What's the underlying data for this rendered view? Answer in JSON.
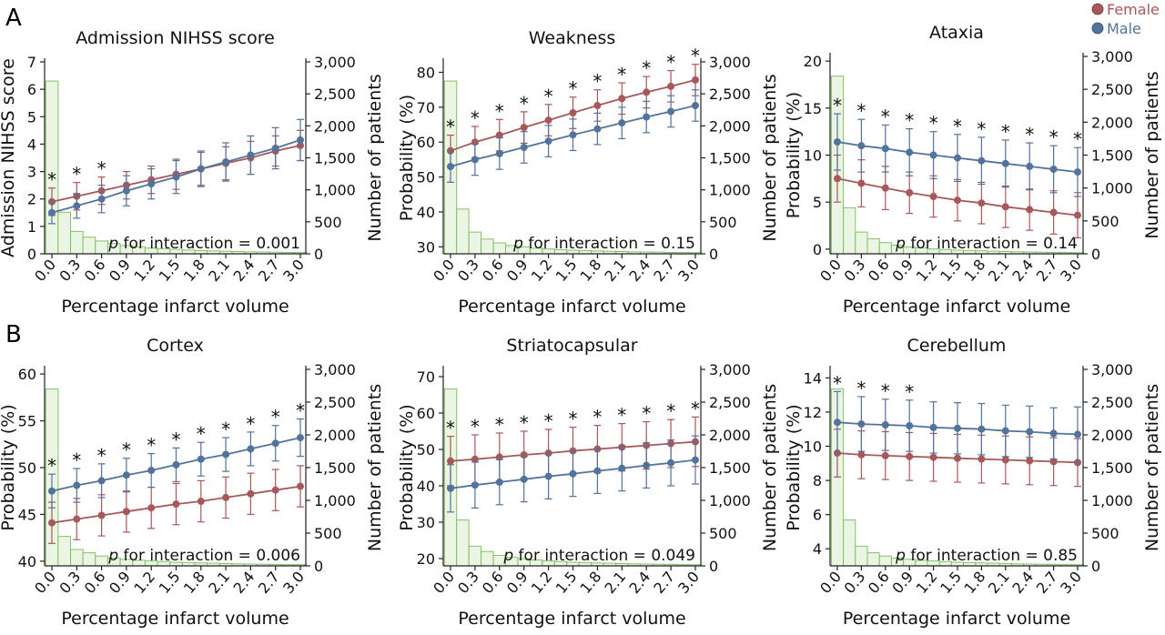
{
  "figure": {
    "panel_labels": [
      "A",
      "B"
    ],
    "legend": [
      {
        "name": "Female",
        "color": "#a8575a"
      },
      {
        "name": "Male",
        "color": "#52739b"
      }
    ],
    "colors": {
      "female": "#a8575a",
      "male": "#52739b",
      "histogram": "#7fbf5f",
      "histogram_fill": "#eaf5e2",
      "axis": "#222222"
    }
  },
  "chart_data": [
    {
      "type": "line",
      "title": "Admission NIHSS score",
      "xlabel": "Percentage infarct volume",
      "ylabel": "Admission NIHSS score",
      "y2label": "Number of patients",
      "annotation": "p for interaction = 0.001",
      "x": [
        "0.0",
        "0.3",
        "0.6",
        "0.9",
        "1.2",
        "1.5",
        "1.8",
        "2.1",
        "2.4",
        "2.7",
        "3.0"
      ],
      "ylim": [
        0,
        7
      ],
      "yticks": [
        0,
        1,
        2,
        3,
        4,
        5,
        6,
        7
      ],
      "y2lim": [
        0,
        3000
      ],
      "y2ticks": [
        "0",
        "500",
        "1,000",
        "1,500",
        "2,000",
        "2,500",
        "3,000"
      ],
      "series": [
        {
          "name": "Female",
          "values": [
            1.9,
            2.1,
            2.3,
            2.5,
            2.7,
            2.9,
            3.1,
            3.3,
            3.5,
            3.75,
            3.95
          ],
          "err": [
            0.5,
            0.5,
            0.5,
            0.5,
            0.5,
            0.55,
            0.6,
            0.6,
            0.6,
            0.55,
            0.55
          ]
        },
        {
          "name": "Male",
          "values": [
            1.5,
            1.75,
            2.0,
            2.3,
            2.55,
            2.8,
            3.1,
            3.35,
            3.6,
            3.85,
            4.15
          ],
          "err": [
            0.4,
            0.45,
            0.5,
            0.55,
            0.55,
            0.6,
            0.65,
            0.7,
            0.7,
            0.75,
            0.75
          ]
        }
      ],
      "significant": [
        true,
        true,
        true,
        false,
        false,
        false,
        false,
        false,
        false,
        false,
        false
      ],
      "histogram": [
        2700,
        650,
        350,
        260,
        200,
        160,
        130,
        110,
        90,
        80,
        70,
        60,
        50,
        45,
        40,
        35,
        30,
        28,
        25,
        22,
        20
      ]
    },
    {
      "type": "line",
      "title": "Weakness",
      "xlabel": "Percentage infarct volume",
      "ylabel": "Probability (%)",
      "y2label": "Number of patients",
      "annotation": "p for interaction = 0.15",
      "x": [
        "0.0",
        "0.3",
        "0.6",
        "0.9",
        "1.2",
        "1.5",
        "1.8",
        "2.1",
        "2.4",
        "2.7",
        "3.0"
      ],
      "ylim": [
        28,
        83
      ],
      "yticks": [
        30,
        40,
        50,
        60,
        70,
        80
      ],
      "y2lim": [
        0,
        3000
      ],
      "y2ticks": [
        "0",
        "500",
        "1,000",
        "1,500",
        "2,000",
        "2,500",
        "3,000"
      ],
      "series": [
        {
          "name": "Female",
          "values": [
            57.5,
            60,
            62,
            64.2,
            66.3,
            68.4,
            70.5,
            72.5,
            74.3,
            76,
            77.8
          ],
          "err": [
            4.5,
            4.5,
            4.5,
            4.5,
            4.5,
            4.5,
            4.5,
            4.5,
            4.5,
            4.5,
            4.5
          ]
        },
        {
          "name": "Male",
          "values": [
            53,
            55,
            56.7,
            58.5,
            60.3,
            62.1,
            63.8,
            65.5,
            67.2,
            68.8,
            70.5
          ],
          "err": [
            4.5,
            4.5,
            4.5,
            4.5,
            4.5,
            4.5,
            4.5,
            4.5,
            4.5,
            4.5,
            4.5
          ]
        }
      ],
      "significant": [
        true,
        true,
        true,
        true,
        true,
        true,
        true,
        true,
        true,
        true,
        true
      ],
      "histogram": [
        2700,
        700,
        340,
        230,
        170,
        130,
        110,
        90,
        75,
        65,
        55,
        50,
        45,
        40,
        35,
        30,
        28,
        25,
        22,
        20,
        18
      ]
    },
    {
      "type": "line",
      "title": "Ataxia",
      "xlabel": "Percentage infarct volume",
      "ylabel": "Probability (%)",
      "y2label": "Number of patients",
      "annotation": "p for interaction = 0.14",
      "x": [
        "0.0",
        "0.3",
        "0.6",
        "0.9",
        "1.2",
        "1.5",
        "1.8",
        "2.1",
        "2.4",
        "2.7",
        "3.0"
      ],
      "ylim": [
        -0.5,
        20.5
      ],
      "yticks": [
        0,
        5,
        10,
        15,
        20
      ],
      "y2lim": [
        0,
        3000
      ],
      "y2ticks": [
        "0",
        "500",
        "1,000",
        "1,500",
        "2,000",
        "2,500",
        "3,000"
      ],
      "series": [
        {
          "name": "Female",
          "values": [
            7.5,
            7.0,
            6.5,
            6.0,
            5.6,
            5.2,
            4.9,
            4.5,
            4.2,
            3.9,
            3.6
          ],
          "err": [
            2.5,
            2.5,
            2.3,
            2.2,
            2.2,
            2.2,
            2.2,
            2.2,
            2.2,
            2.3,
            2.4
          ]
        },
        {
          "name": "Male",
          "values": [
            11.4,
            11.0,
            10.7,
            10.3,
            10.0,
            9.7,
            9.4,
            9.1,
            8.8,
            8.5,
            8.2
          ],
          "err": [
            3.0,
            2.8,
            2.5,
            2.5,
            2.5,
            2.5,
            2.5,
            2.5,
            2.5,
            2.5,
            2.6
          ]
        }
      ],
      "significant": [
        true,
        true,
        true,
        true,
        true,
        true,
        true,
        true,
        true,
        true,
        true
      ],
      "histogram": [
        2700,
        700,
        330,
        230,
        170,
        130,
        105,
        90,
        75,
        65,
        55,
        50,
        45,
        40,
        35,
        30,
        28,
        25,
        22,
        20,
        18
      ]
    },
    {
      "type": "line",
      "title": "Cortex",
      "xlabel": "Percentage infarct volume",
      "ylabel": "Probability (%)",
      "y2label": "Number of patients",
      "annotation": "p for interaction = 0.006",
      "x": [
        "0.0",
        "0.3",
        "0.6",
        "0.9",
        "1.2",
        "1.5",
        "1.8",
        "2.1",
        "2.4",
        "2.7",
        "3.0"
      ],
      "ylim": [
        39.5,
        60.5
      ],
      "yticks": [
        40,
        45,
        50,
        55,
        60
      ],
      "y2lim": [
        0,
        3000
      ],
      "y2ticks": [
        "0",
        "500",
        "1,000",
        "1,500",
        "2,000",
        "2,500",
        "3,000"
      ],
      "series": [
        {
          "name": "Female",
          "values": [
            44.1,
            44.5,
            44.9,
            45.3,
            45.7,
            46.1,
            46.4,
            46.8,
            47.2,
            47.6,
            48.0
          ],
          "err": [
            2.2,
            2.2,
            2.2,
            2.2,
            2.2,
            2.2,
            2.2,
            2.2,
            2.2,
            2.2,
            2.2
          ]
        },
        {
          "name": "Male",
          "values": [
            47.5,
            48.1,
            48.6,
            49.2,
            49.7,
            50.3,
            50.9,
            51.4,
            52.0,
            52.6,
            53.2
          ],
          "err": [
            1.8,
            1.8,
            1.8,
            1.8,
            1.8,
            1.8,
            1.8,
            1.8,
            1.8,
            1.9,
            2.0
          ]
        }
      ],
      "significant": [
        true,
        true,
        true,
        true,
        true,
        true,
        true,
        true,
        true,
        true,
        true
      ],
      "histogram": [
        2700,
        450,
        250,
        200,
        150,
        120,
        100,
        85,
        75,
        65,
        55,
        50,
        45,
        40,
        35,
        30,
        28,
        25,
        22,
        20,
        18
      ]
    },
    {
      "type": "line",
      "title": "Striatocapsular",
      "xlabel": "Percentage infarct volume",
      "ylabel": "Probability (%)",
      "y2label": "Number of patients",
      "annotation": "p for interaction = 0.049",
      "x": [
        "0.0",
        "0.3",
        "0.6",
        "0.9",
        "1.2",
        "1.5",
        "1.8",
        "2.1",
        "2.4",
        "2.7",
        "3.0"
      ],
      "ylim": [
        18,
        72
      ],
      "yticks": [
        20,
        30,
        40,
        50,
        60,
        70
      ],
      "y2lim": [
        0,
        3000
      ],
      "y2ticks": [
        "0",
        "500",
        "1,000",
        "1,500",
        "2,000",
        "2,500",
        "3,000"
      ],
      "series": [
        {
          "name": "Female",
          "values": [
            46.8,
            47.3,
            47.9,
            48.5,
            49.0,
            49.6,
            50.1,
            50.6,
            51.1,
            51.6,
            52.1
          ],
          "err": [
            6.8,
            6.7,
            6.6,
            6.5,
            6.5,
            6.5,
            6.5,
            6.5,
            6.5,
            6.6,
            6.8
          ]
        },
        {
          "name": "Male",
          "values": [
            39.3,
            40.2,
            41.0,
            41.8,
            42.6,
            43.3,
            44.1,
            44.8,
            45.6,
            46.3,
            47.1
          ],
          "err": [
            6.5,
            6.3,
            6.2,
            6.2,
            6.2,
            6.2,
            6.2,
            6.2,
            6.2,
            6.3,
            6.6
          ]
        }
      ],
      "significant": [
        true,
        true,
        true,
        true,
        true,
        true,
        true,
        true,
        true,
        true,
        true
      ],
      "histogram": [
        2700,
        700,
        300,
        220,
        160,
        130,
        110,
        90,
        75,
        65,
        55,
        50,
        45,
        40,
        35,
        30,
        28,
        25,
        22,
        20,
        18
      ]
    },
    {
      "type": "line",
      "title": "Cerebellum",
      "xlabel": "Percentage infarct volume",
      "ylabel": "Probability (%)",
      "y2label": "Number of patients",
      "annotation": "p for interaction = 0.85",
      "x": [
        "0.0",
        "0.3",
        "0.6",
        "0.9",
        "1.2",
        "1.5",
        "1.8",
        "2.1",
        "2.4",
        "2.7",
        "3.0"
      ],
      "ylim": [
        3,
        14.5
      ],
      "yticks": [
        4,
        6,
        8,
        10,
        12,
        14
      ],
      "y2lim": [
        0,
        3000
      ],
      "y2ticks": [
        "0",
        "500",
        "1,000",
        "1,500",
        "2,000",
        "2,500",
        "3,000"
      ],
      "series": [
        {
          "name": "Female",
          "values": [
            9.6,
            9.5,
            9.45,
            9.4,
            9.35,
            9.3,
            9.25,
            9.2,
            9.15,
            9.1,
            9.05
          ],
          "err": [
            1.4,
            1.4,
            1.4,
            1.4,
            1.4,
            1.4,
            1.4,
            1.4,
            1.4,
            1.4,
            1.4
          ]
        },
        {
          "name": "Male",
          "values": [
            11.4,
            11.3,
            11.25,
            11.2,
            11.1,
            11.05,
            11.0,
            10.9,
            10.85,
            10.75,
            10.7
          ],
          "err": [
            1.8,
            1.6,
            1.5,
            1.5,
            1.5,
            1.5,
            1.5,
            1.5,
            1.5,
            1.5,
            1.6
          ]
        }
      ],
      "significant": [
        true,
        true,
        true,
        true,
        false,
        false,
        false,
        false,
        false,
        false,
        false
      ],
      "histogram": [
        2700,
        700,
        300,
        200,
        150,
        120,
        100,
        85,
        75,
        65,
        55,
        50,
        45,
        40,
        35,
        30,
        28,
        25,
        22,
        20,
        18
      ]
    }
  ]
}
